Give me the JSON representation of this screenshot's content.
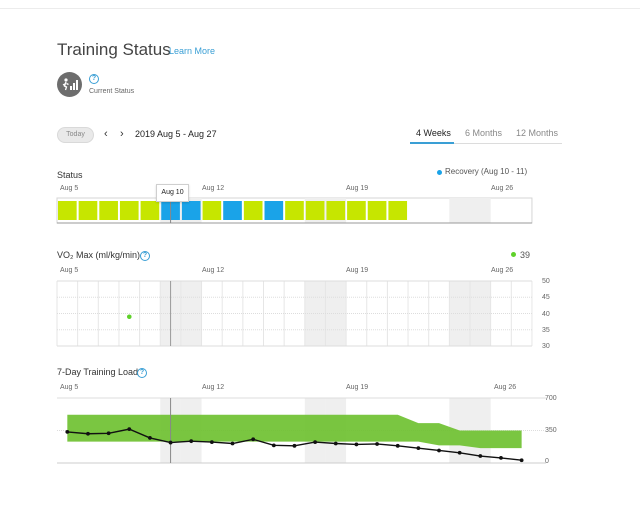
{
  "header": {
    "title": "Training Status",
    "learn_more": "Learn More",
    "current_status_label": "Current Status",
    "status_icon": "runner-chart-icon",
    "help_icon": "question-circle-icon"
  },
  "toolbar": {
    "today_label": "Today",
    "prev_icon": "chevron-left-icon",
    "next_icon": "chevron-right-icon",
    "date_range": "2019 Aug 5 - Aug 27",
    "tabs": [
      {
        "label": "4 Weeks",
        "active": true
      },
      {
        "label": "6 Months",
        "active": false
      },
      {
        "label": "12 Months",
        "active": false
      }
    ]
  },
  "colors": {
    "productive": "#c6e600",
    "recovery": "#1aa3e8",
    "vo2": "#5fd12a",
    "load_band": "#6cc02c",
    "accent": "#3a9fd5"
  },
  "status_section": {
    "title": "Status",
    "legend": "Recovery (Aug 10 - 11)",
    "tooltip": "Aug 10",
    "x_labels": [
      "Aug 5",
      "Aug 12",
      "Aug 19",
      "Aug 26"
    ]
  },
  "vo2_section": {
    "title": "VO₂ Max (ml/kg/min)",
    "legend_value": "39",
    "x_labels": [
      "Aug 5",
      "Aug 12",
      "Aug 19",
      "Aug 26"
    ],
    "y_labels": [
      "50",
      "45",
      "40",
      "35",
      "30"
    ]
  },
  "load_section": {
    "title": "7-Day Training Load",
    "x_labels": [
      "Aug 5",
      "Aug 12",
      "Aug 19",
      "Aug 26"
    ],
    "y_labels": [
      "700",
      "350",
      "0"
    ]
  },
  "chart_data": [
    {
      "type": "heatmap",
      "title": "Status",
      "x": [
        "Aug 5",
        "Aug 6",
        "Aug 7",
        "Aug 8",
        "Aug 9",
        "Aug 10",
        "Aug 11",
        "Aug 12",
        "Aug 13",
        "Aug 14",
        "Aug 15",
        "Aug 16",
        "Aug 17",
        "Aug 18",
        "Aug 19",
        "Aug 20",
        "Aug 21",
        "Aug 22",
        "Aug 23",
        "Aug 24",
        "Aug 25",
        "Aug 26",
        "Aug 27"
      ],
      "values": [
        "productive",
        "productive",
        "productive",
        "productive",
        "productive",
        "recovery",
        "recovery",
        "productive",
        "recovery",
        "productive",
        "recovery",
        "productive",
        "productive",
        "productive",
        "productive",
        "productive",
        "productive",
        "none",
        "none",
        "none",
        "none",
        "none",
        "none"
      ],
      "legend": "Recovery (Aug 10 - 11)"
    },
    {
      "type": "scatter",
      "title": "VO₂ Max (ml/kg/min)",
      "x": [
        "Aug 8"
      ],
      "y": [
        39
      ],
      "ylim": [
        30,
        50
      ]
    },
    {
      "type": "line",
      "title": "7-Day Training Load",
      "x": [
        "Aug 5",
        "Aug 6",
        "Aug 7",
        "Aug 8",
        "Aug 9",
        "Aug 10",
        "Aug 11",
        "Aug 12",
        "Aug 13",
        "Aug 14",
        "Aug 15",
        "Aug 16",
        "Aug 17",
        "Aug 18",
        "Aug 19",
        "Aug 20",
        "Aug 21",
        "Aug 22",
        "Aug 23",
        "Aug 24",
        "Aug 25",
        "Aug 26",
        "Aug 27"
      ],
      "series": [
        {
          "values": [
            335,
            315,
            320,
            365,
            270,
            220,
            235,
            225,
            210,
            255,
            190,
            185,
            225,
            210,
            200,
            205,
            185,
            160,
            135,
            110,
            75,
            55,
            30
          ]
        }
      ],
      "band_low": [
        230,
        230,
        230,
        230,
        230,
        230,
        230,
        230,
        230,
        230,
        230,
        230,
        230,
        230,
        230,
        230,
        230,
        230,
        190,
        190,
        160,
        160,
        160
      ],
      "band_high": [
        520,
        520,
        520,
        520,
        520,
        520,
        520,
        520,
        520,
        520,
        520,
        520,
        520,
        520,
        520,
        520,
        520,
        430,
        430,
        350,
        350,
        350,
        350
      ],
      "ylim": [
        0,
        700
      ]
    }
  ]
}
